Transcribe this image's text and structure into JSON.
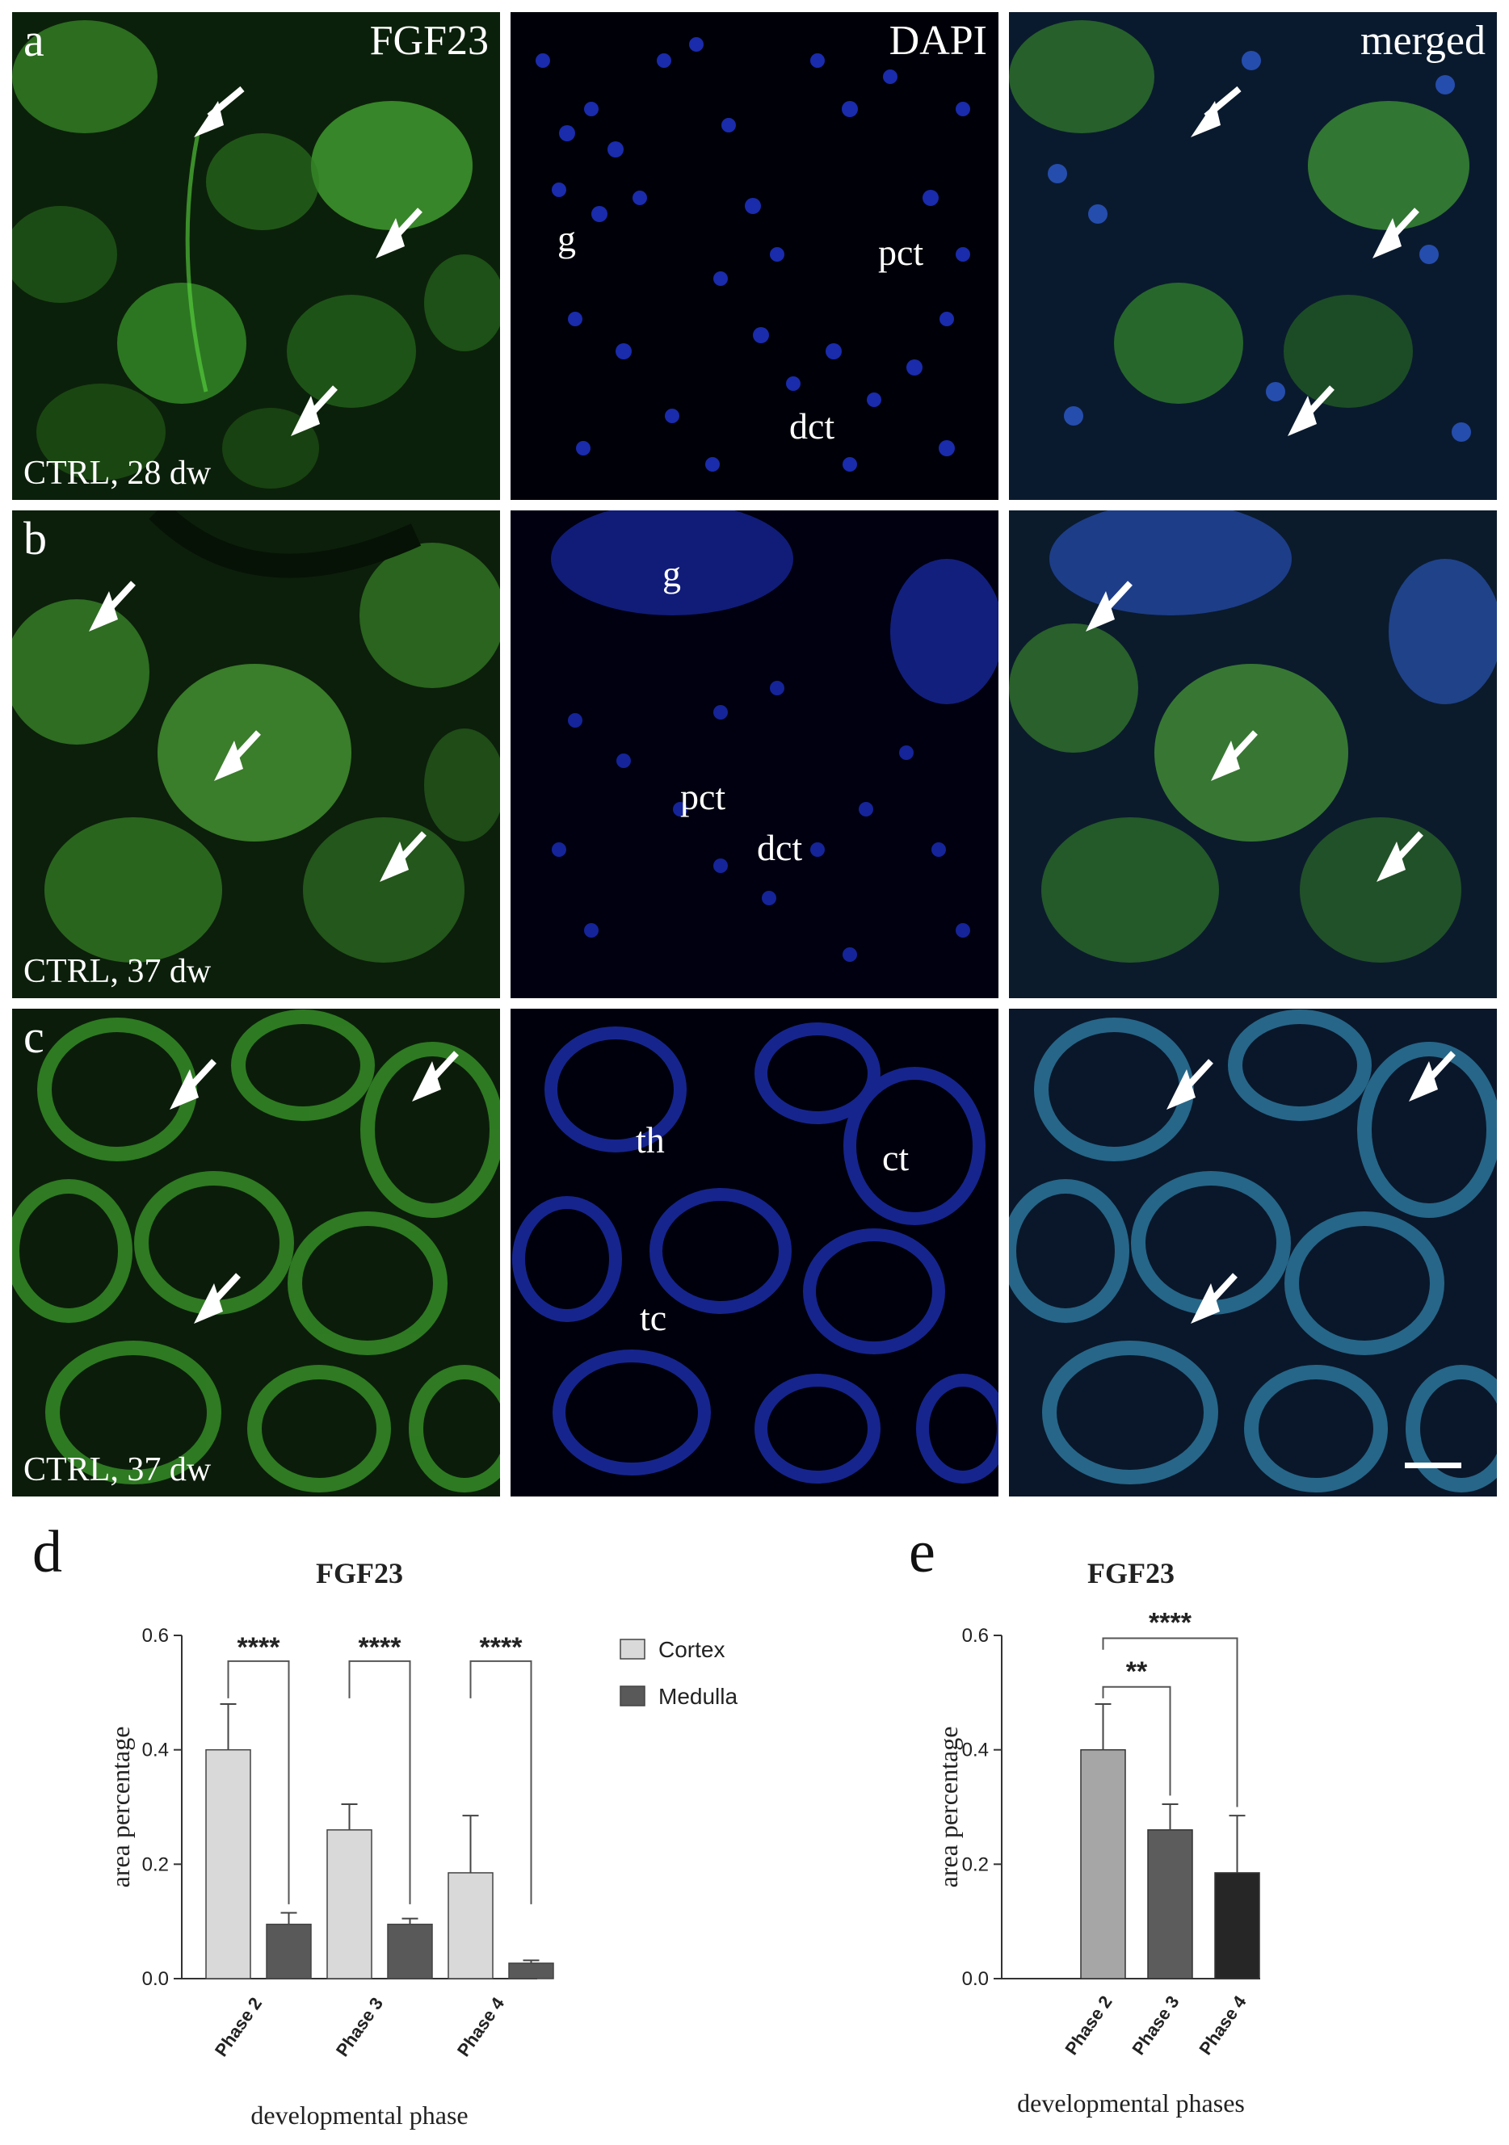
{
  "panels": {
    "a": {
      "letter": "a",
      "fgf": "FGF23",
      "dapi": "DAPI",
      "merged": "merged",
      "condition": "CTRL, 28 dw",
      "labels": [
        {
          "text": "g"
        },
        {
          "text": "pct"
        },
        {
          "text": "dct"
        }
      ]
    },
    "b": {
      "letter": "b",
      "condition": "CTRL, 37 dw",
      "labels": [
        {
          "text": "g"
        },
        {
          "text": "pct"
        },
        {
          "text": "dct"
        }
      ]
    },
    "c": {
      "letter": "c",
      "condition": "CTRL, 37 dw",
      "labels": [
        {
          "text": "th"
        },
        {
          "text": "ct"
        },
        {
          "text": "tc"
        }
      ]
    }
  },
  "colors": {
    "fgf23": "#3fae2c",
    "dapi": "#2438d8",
    "merged_blue": "#2f6ed0",
    "bar_cortex": "#d9d9d9",
    "bar_medulla": "#595959",
    "bar_e2": "#a6a6a6",
    "bar_e3": "#5c5c5c",
    "bar_e4": "#262626"
  },
  "icons": {
    "arrow": "arrow-icon",
    "scale": "scale-bar"
  },
  "chart_data": [
    {
      "panel": "d",
      "type": "bar",
      "title": "FGF23",
      "xlabel": "developmental phase",
      "ylabel": "area percentage",
      "ylim": [
        0,
        0.6
      ],
      "yticks": [
        "0.0",
        "0.2",
        "0.4",
        "0.6"
      ],
      "categories": [
        "Phase 2",
        "Phase 3",
        "Phase 4"
      ],
      "series": [
        {
          "name": "Cortex",
          "values": [
            0.4,
            0.26,
            0.185
          ],
          "errors": [
            0.08,
            0.045,
            0.1
          ]
        },
        {
          "name": "Medulla",
          "values": [
            0.095,
            0.095,
            0.027
          ],
          "errors": [
            0.02,
            0.01,
            0.005
          ]
        }
      ],
      "significance": [
        "****",
        "****",
        "****"
      ],
      "legend": "right"
    },
    {
      "panel": "e",
      "type": "bar",
      "title": "FGF23",
      "xlabel": "developmental phases",
      "ylabel": "area percentage",
      "ylim": [
        0,
        0.6
      ],
      "yticks": [
        "0.0",
        "0.2",
        "0.4",
        "0.6"
      ],
      "categories": [
        "Phase 2",
        "Phase 3",
        "Phase 4"
      ],
      "values": [
        0.4,
        0.26,
        0.185
      ],
      "errors": [
        0.08,
        0.045,
        0.1
      ],
      "significance": [
        {
          "pair": "Phase 2 vs Phase 3",
          "label": "**"
        },
        {
          "pair": "Phase 2 vs Phase 4",
          "label": "****"
        }
      ]
    }
  ]
}
